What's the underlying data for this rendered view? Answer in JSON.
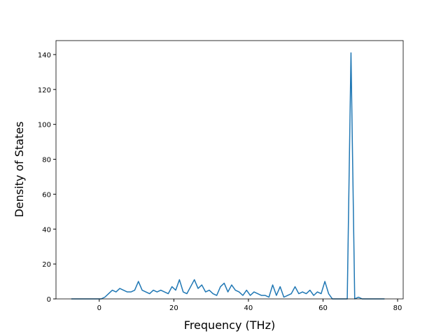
{
  "chart_data": {
    "type": "line",
    "xlabel": "Frequency (THz)",
    "ylabel": "Density of States",
    "x": [
      -7.5,
      -6.5,
      -5.5,
      -4.5,
      -3.5,
      -2.5,
      -1.5,
      -0.5,
      0.5,
      1.5,
      2.5,
      3.5,
      4.5,
      5.5,
      6.5,
      7.5,
      8.5,
      9.5,
      10.5,
      11.5,
      12.5,
      13.5,
      14.5,
      15.5,
      16.5,
      17.5,
      18.5,
      19.5,
      20.5,
      21.5,
      22.5,
      23.5,
      24.5,
      25.5,
      26.5,
      27.5,
      28.5,
      29.5,
      30.5,
      31.5,
      32.5,
      33.5,
      34.5,
      35.5,
      36.5,
      37.5,
      38.5,
      39.5,
      40.5,
      41.5,
      42.5,
      43.5,
      44.5,
      45.5,
      46.5,
      47.5,
      48.5,
      49.5,
      50.5,
      51.5,
      52.5,
      53.5,
      54.5,
      55.5,
      56.5,
      57.5,
      58.5,
      59.5,
      60.5,
      61.5,
      62.5,
      63.5,
      64.5,
      65.5,
      66.5,
      67.5,
      68.5,
      69.5,
      70.5,
      71.5,
      72.5,
      73.5,
      74.5,
      75.5,
      76.5
    ],
    "values": [
      0,
      0,
      0,
      0,
      0,
      0,
      0,
      0,
      0,
      1,
      3,
      5,
      4,
      6,
      5,
      4,
      4,
      5,
      10,
      5,
      4,
      3,
      5,
      4,
      5,
      4,
      3,
      7,
      5,
      11,
      4,
      3,
      7,
      11,
      6,
      8,
      4,
      5,
      3,
      2,
      7,
      9,
      4,
      8,
      5,
      4,
      2,
      5,
      2,
      4,
      3,
      2,
      2,
      1,
      8,
      2,
      7,
      1,
      2,
      3,
      7,
      3,
      4,
      3,
      5,
      2,
      4,
      3,
      10,
      3,
      0,
      0,
      0,
      0,
      0,
      141,
      0,
      1,
      0,
      0,
      0,
      0,
      0,
      0,
      0
    ],
    "color": "#1f77b4",
    "xlim": [
      -11.6,
      81.5
    ],
    "xticks": [
      0,
      20,
      40,
      60,
      80
    ],
    "ylim": [
      0,
      148
    ],
    "yticks": [
      0,
      20,
      40,
      60,
      80,
      100,
      120,
      140
    ]
  }
}
